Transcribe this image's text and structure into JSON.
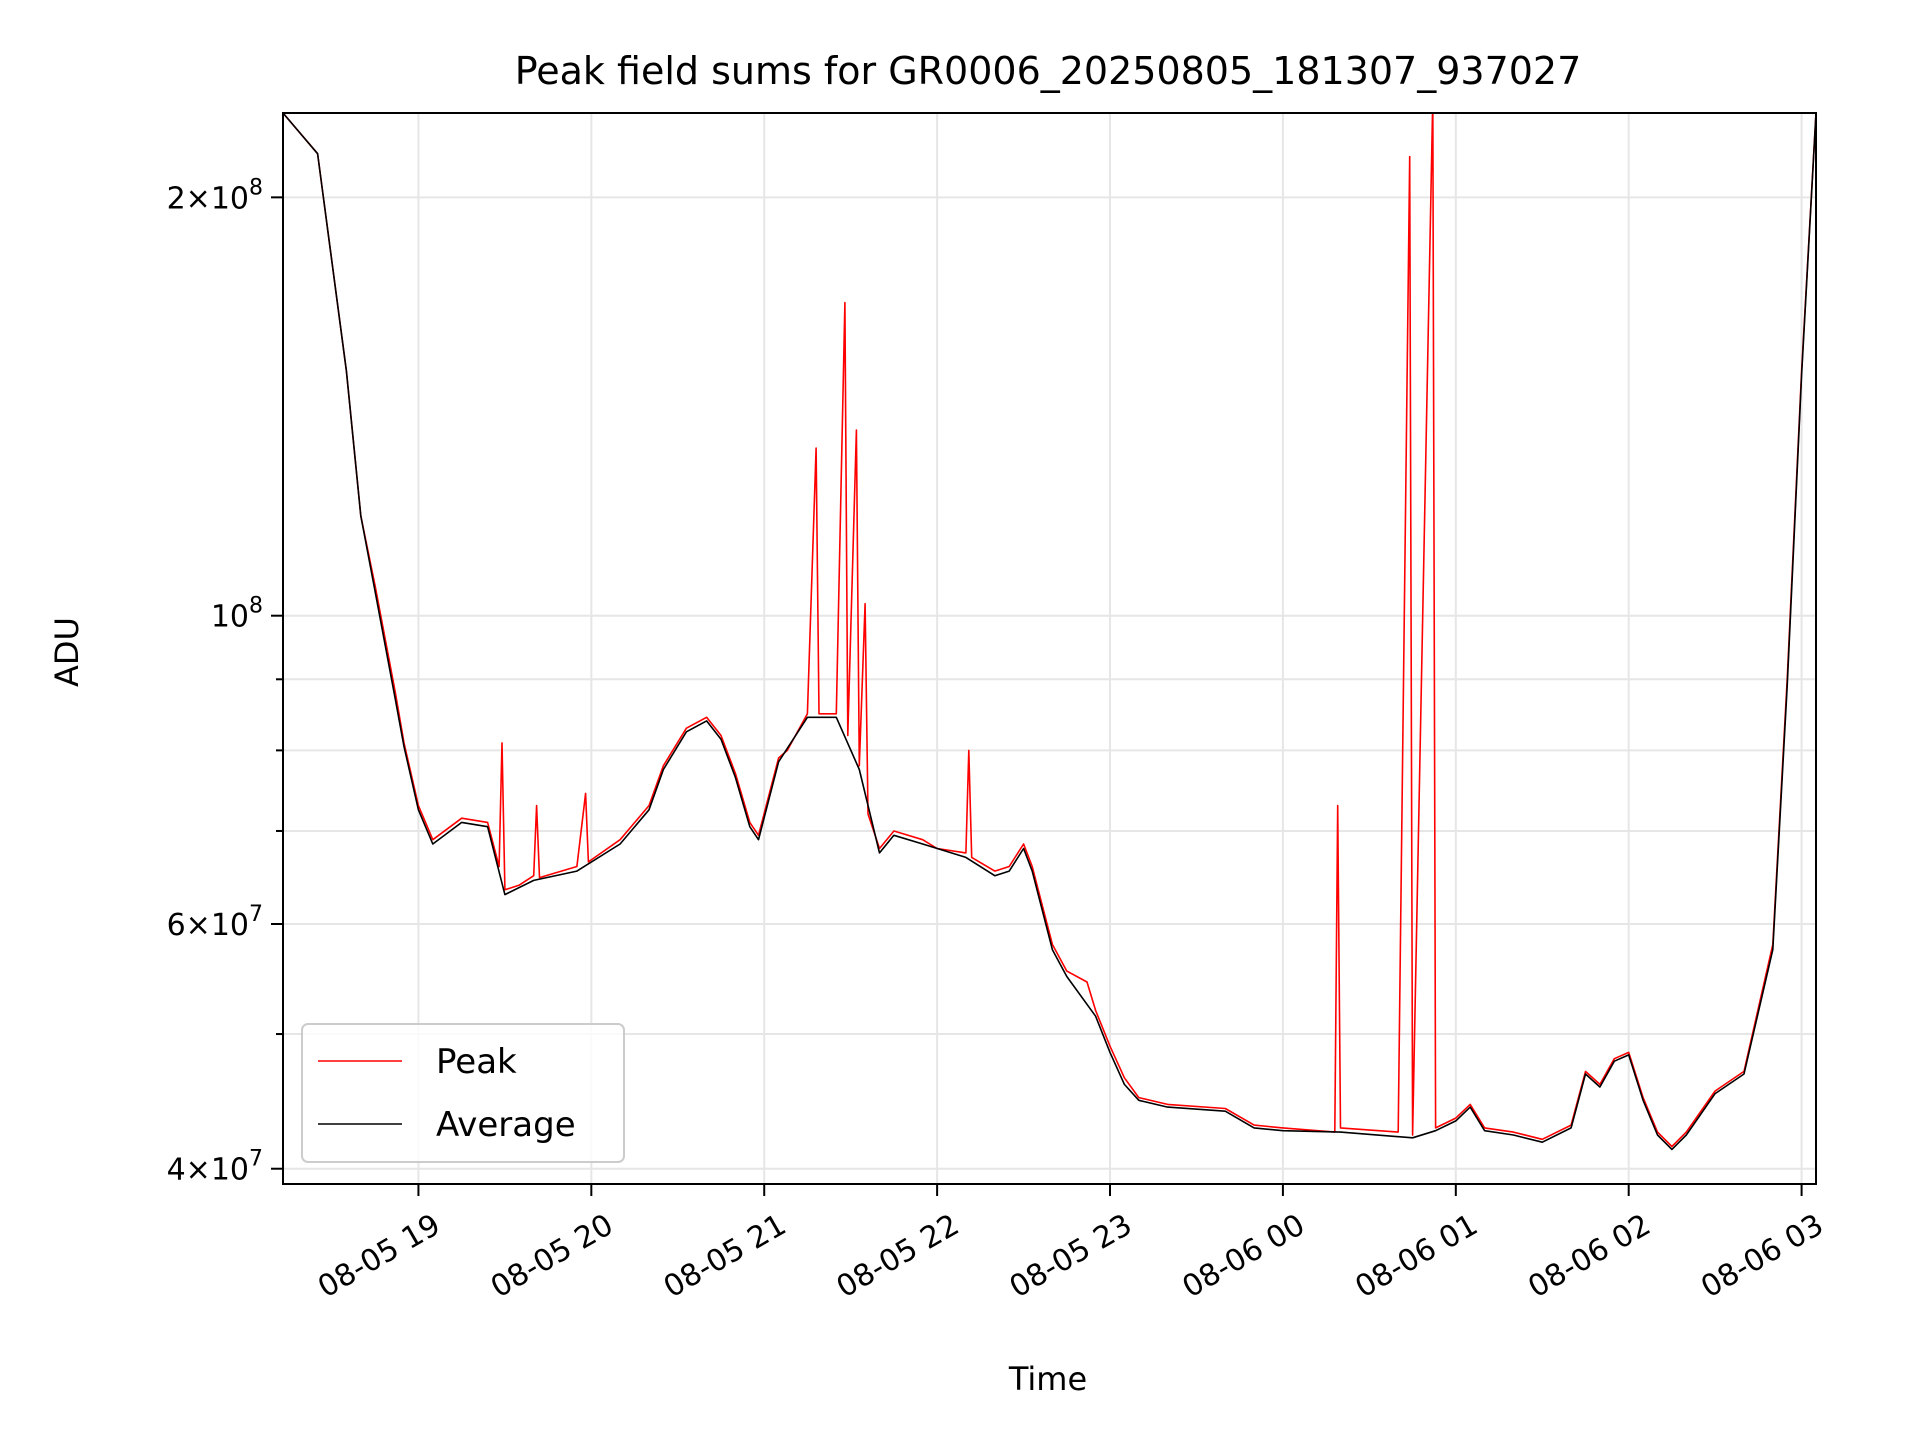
{
  "chart_data": {
    "type": "line",
    "title": "Peak field sums for GR0006_20250805_181307_937027",
    "xlabel": "Time",
    "ylabel": "ADU",
    "x_unit": "time",
    "xlim": [
      "2025-08-05 18:13",
      "2025-08-06 03:05"
    ],
    "ylim": [
      39000000,
      230000000
    ],
    "yscale": "log",
    "grid": true,
    "legend_placement": "lower-left",
    "x_tick_labels": [
      "08-05 19",
      "08-05 20",
      "08-05 21",
      "08-05 22",
      "08-05 23",
      "08-06 00",
      "08-06 01",
      "08-06 02",
      "08-06 03"
    ],
    "x_tick_values": [
      "2025-08-05 19:00",
      "2025-08-05 20:00",
      "2025-08-05 21:00",
      "2025-08-05 22:00",
      "2025-08-05 23:00",
      "2025-08-06 00:00",
      "2025-08-06 01:00",
      "2025-08-06 02:00",
      "2025-08-06 03:00"
    ],
    "y_major_ticks": [
      {
        "value": 40000000,
        "mantissa": "4",
        "exponent": "7"
      },
      {
        "value": 60000000,
        "mantissa": "6",
        "exponent": "7"
      },
      {
        "value": 100000000,
        "mantissa": "",
        "exponent": "8"
      },
      {
        "value": 200000000,
        "mantissa": "2",
        "exponent": "8"
      }
    ],
    "y_minor_ticks": [
      50000000,
      70000000,
      80000000,
      90000000
    ],
    "series": [
      {
        "name": "Peak",
        "color": "#ff0000",
        "values": [
          [
            "2025-08-05 18:13",
            230000000
          ],
          [
            "2025-08-05 18:25",
            215000000
          ],
          [
            "2025-08-05 18:35",
            150000000
          ],
          [
            "2025-08-05 18:40",
            118000000
          ],
          [
            "2025-08-05 18:45",
            105000000
          ],
          [
            "2025-08-05 18:52",
            88000000
          ],
          [
            "2025-08-05 18:55",
            81000000
          ],
          [
            "2025-08-05 19:00",
            73000000
          ],
          [
            "2025-08-05 19:05",
            69000000
          ],
          [
            "2025-08-05 19:15",
            71500000
          ],
          [
            "2025-08-05 19:24",
            71000000
          ],
          [
            "2025-08-05 19:28",
            66000000
          ],
          [
            "2025-08-05 19:29",
            81000000
          ],
          [
            "2025-08-05 19:30",
            63500000
          ],
          [
            "2025-08-05 19:35",
            64000000
          ],
          [
            "2025-08-05 19:40",
            65000000
          ],
          [
            "2025-08-05 19:41",
            73000000
          ],
          [
            "2025-08-05 19:42",
            64800000
          ],
          [
            "2025-08-05 19:55",
            66000000
          ],
          [
            "2025-08-05 19:58",
            74500000
          ],
          [
            "2025-08-05 19:59",
            66500000
          ],
          [
            "2025-08-05 20:10",
            69000000
          ],
          [
            "2025-08-05 20:20",
            73000000
          ],
          [
            "2025-08-05 20:25",
            78000000
          ],
          [
            "2025-08-05 20:33",
            83000000
          ],
          [
            "2025-08-05 20:40",
            84500000
          ],
          [
            "2025-08-05 20:45",
            82000000
          ],
          [
            "2025-08-05 20:50",
            77000000
          ],
          [
            "2025-08-05 20:55",
            71000000
          ],
          [
            "2025-08-05 20:58",
            69500000
          ],
          [
            "2025-08-05 21:05",
            79000000
          ],
          [
            "2025-08-05 21:08",
            80000000
          ],
          [
            "2025-08-05 21:15",
            85000000
          ],
          [
            "2025-08-05 21:18",
            132000000
          ],
          [
            "2025-08-05 21:19",
            85000000
          ],
          [
            "2025-08-05 21:25",
            85000000
          ],
          [
            "2025-08-05 21:28",
            168000000
          ],
          [
            "2025-08-05 21:29",
            82000000
          ],
          [
            "2025-08-05 21:32",
            136000000
          ],
          [
            "2025-08-05 21:33",
            78000000
          ],
          [
            "2025-08-05 21:35",
            102000000
          ],
          [
            "2025-08-05 21:36",
            72000000
          ],
          [
            "2025-08-05 21:40",
            68000000
          ],
          [
            "2025-08-05 21:45",
            70000000
          ],
          [
            "2025-08-05 21:55",
            69000000
          ],
          [
            "2025-08-05 22:00",
            68000000
          ],
          [
            "2025-08-05 22:10",
            67500000
          ],
          [
            "2025-08-05 22:11",
            80000000
          ],
          [
            "2025-08-05 22:12",
            67000000
          ],
          [
            "2025-08-05 22:20",
            65500000
          ],
          [
            "2025-08-05 22:25",
            66000000
          ],
          [
            "2025-08-05 22:30",
            68500000
          ],
          [
            "2025-08-05 22:33",
            66000000
          ],
          [
            "2025-08-05 22:40",
            58000000
          ],
          [
            "2025-08-05 22:45",
            55500000
          ],
          [
            "2025-08-05 22:52",
            54500000
          ],
          [
            "2025-08-05 22:55",
            52000000
          ],
          [
            "2025-08-05 23:00",
            49000000
          ],
          [
            "2025-08-05 23:05",
            46500000
          ],
          [
            "2025-08-05 23:10",
            45000000
          ],
          [
            "2025-08-05 23:20",
            44500000
          ],
          [
            "2025-08-05 23:40",
            44200000
          ],
          [
            "2025-08-05 23:50",
            43000000
          ],
          [
            "2025-08-06 00:00",
            42800000
          ],
          [
            "2025-08-06 00:18",
            42500000
          ],
          [
            "2025-08-06 00:19",
            73000000
          ],
          [
            "2025-08-06 00:20",
            42800000
          ],
          [
            "2025-08-06 00:40",
            42500000
          ],
          [
            "2025-08-06 00:44",
            214000000
          ],
          [
            "2025-08-06 00:45",
            42300000
          ],
          [
            "2025-08-06 00:52",
            236000000
          ],
          [
            "2025-08-06 00:53",
            42800000
          ],
          [
            "2025-08-06 01:00",
            43500000
          ],
          [
            "2025-08-06 01:05",
            44500000
          ],
          [
            "2025-08-06 01:10",
            42800000
          ],
          [
            "2025-08-06 01:20",
            42500000
          ],
          [
            "2025-08-06 01:30",
            42000000
          ],
          [
            "2025-08-06 01:40",
            43000000
          ],
          [
            "2025-08-06 01:45",
            47000000
          ],
          [
            "2025-08-06 01:50",
            46000000
          ],
          [
            "2025-08-06 01:55",
            48000000
          ],
          [
            "2025-08-06 02:00",
            48500000
          ],
          [
            "2025-08-06 02:05",
            45000000
          ],
          [
            "2025-08-06 02:10",
            42500000
          ],
          [
            "2025-08-06 02:15",
            41500000
          ],
          [
            "2025-08-06 02:20",
            42500000
          ],
          [
            "2025-08-06 02:30",
            45500000
          ],
          [
            "2025-08-06 02:40",
            47000000
          ],
          [
            "2025-08-06 02:50",
            58000000
          ],
          [
            "2025-08-06 02:55",
            90000000
          ],
          [
            "2025-08-06 03:00",
            150000000
          ],
          [
            "2025-08-06 03:05",
            230000000
          ]
        ]
      },
      {
        "name": "Average",
        "color": "#000000",
        "values": [
          [
            "2025-08-05 18:13",
            230000000
          ],
          [
            "2025-08-05 18:25",
            215000000
          ],
          [
            "2025-08-05 18:35",
            150000000
          ],
          [
            "2025-08-05 18:40",
            118000000
          ],
          [
            "2025-08-05 18:45",
            104000000
          ],
          [
            "2025-08-05 18:52",
            87000000
          ],
          [
            "2025-08-05 18:55",
            80500000
          ],
          [
            "2025-08-05 19:00",
            72500000
          ],
          [
            "2025-08-05 19:05",
            68500000
          ],
          [
            "2025-08-05 19:15",
            71000000
          ],
          [
            "2025-08-05 19:24",
            70500000
          ],
          [
            "2025-08-05 19:30",
            63000000
          ],
          [
            "2025-08-05 19:40",
            64500000
          ],
          [
            "2025-08-05 19:55",
            65500000
          ],
          [
            "2025-08-05 20:10",
            68500000
          ],
          [
            "2025-08-05 20:20",
            72500000
          ],
          [
            "2025-08-05 20:25",
            77500000
          ],
          [
            "2025-08-05 20:33",
            82500000
          ],
          [
            "2025-08-05 20:40",
            84000000
          ],
          [
            "2025-08-05 20:45",
            81500000
          ],
          [
            "2025-08-05 20:50",
            76500000
          ],
          [
            "2025-08-05 20:55",
            70500000
          ],
          [
            "2025-08-05 20:58",
            69000000
          ],
          [
            "2025-08-05 21:05",
            78500000
          ],
          [
            "2025-08-05 21:15",
            84500000
          ],
          [
            "2025-08-05 21:25",
            84500000
          ],
          [
            "2025-08-05 21:33",
            77500000
          ],
          [
            "2025-08-05 21:40",
            67500000
          ],
          [
            "2025-08-05 21:45",
            69500000
          ],
          [
            "2025-08-05 21:55",
            68500000
          ],
          [
            "2025-08-05 22:10",
            67000000
          ],
          [
            "2025-08-05 22:20",
            65000000
          ],
          [
            "2025-08-05 22:25",
            65500000
          ],
          [
            "2025-08-05 22:30",
            68000000
          ],
          [
            "2025-08-05 22:33",
            65500000
          ],
          [
            "2025-08-05 22:40",
            57500000
          ],
          [
            "2025-08-05 22:45",
            55000000
          ],
          [
            "2025-08-05 22:55",
            51500000
          ],
          [
            "2025-08-05 23:00",
            48500000
          ],
          [
            "2025-08-05 23:05",
            46000000
          ],
          [
            "2025-08-05 23:10",
            44800000
          ],
          [
            "2025-08-05 23:20",
            44300000
          ],
          [
            "2025-08-05 23:40",
            44000000
          ],
          [
            "2025-08-05 23:50",
            42800000
          ],
          [
            "2025-08-06 00:00",
            42600000
          ],
          [
            "2025-08-06 00:20",
            42500000
          ],
          [
            "2025-08-06 00:45",
            42100000
          ],
          [
            "2025-08-06 00:53",
            42600000
          ],
          [
            "2025-08-06 01:00",
            43300000
          ],
          [
            "2025-08-06 01:05",
            44300000
          ],
          [
            "2025-08-06 01:10",
            42600000
          ],
          [
            "2025-08-06 01:20",
            42300000
          ],
          [
            "2025-08-06 01:30",
            41800000
          ],
          [
            "2025-08-06 01:40",
            42800000
          ],
          [
            "2025-08-06 01:45",
            46800000
          ],
          [
            "2025-08-06 01:50",
            45800000
          ],
          [
            "2025-08-06 01:55",
            47800000
          ],
          [
            "2025-08-06 02:00",
            48300000
          ],
          [
            "2025-08-06 02:05",
            44800000
          ],
          [
            "2025-08-06 02:10",
            42300000
          ],
          [
            "2025-08-06 02:15",
            41300000
          ],
          [
            "2025-08-06 02:20",
            42300000
          ],
          [
            "2025-08-06 02:30",
            45300000
          ],
          [
            "2025-08-06 02:40",
            46800000
          ],
          [
            "2025-08-06 02:50",
            57500000
          ],
          [
            "2025-08-06 02:55",
            89000000
          ],
          [
            "2025-08-06 03:00",
            149000000
          ],
          [
            "2025-08-06 03:05",
            230000000
          ]
        ]
      }
    ]
  }
}
